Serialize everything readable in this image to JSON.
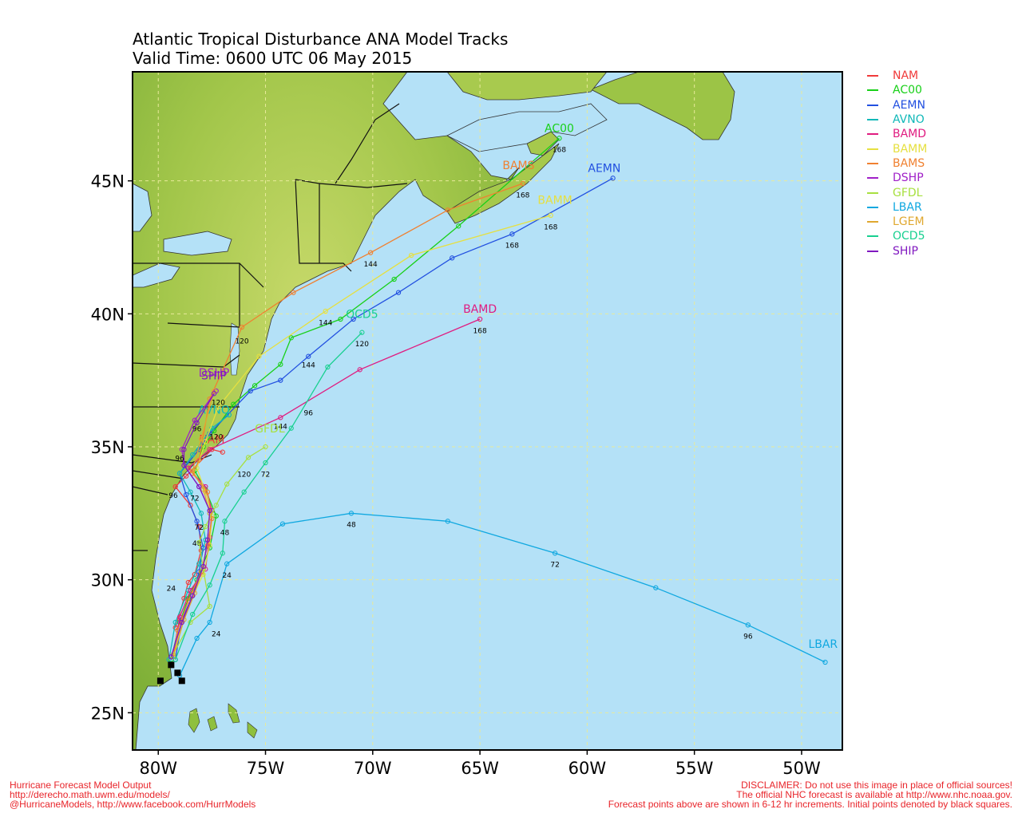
{
  "title_line1": "Atlantic Tropical Disturbance ANA Model Tracks",
  "title_line2": "Valid Time: 0600 UTC 06 May 2015",
  "footer_left": [
    "Hurricane Forecast Model Output",
    "http://derecho.math.uwm.edu/models/",
    "@HurricaneModels, http://www.facebook.com/HurrModels"
  ],
  "footer_right": [
    "DISCLAIMER: Do not use this image in place of official sources!",
    "The official NHC forecast is available at http://www.nhc.noaa.gov.",
    "Forecast points above are shown in 6-12 hr increments. Initial points denoted by black squares."
  ],
  "chart_data": {
    "type": "scatter",
    "title": "Atlantic Tropical Disturbance ANA Model Tracks",
    "subtitle": "Valid Time: 0600 UTC 06 May 2015",
    "x_axis": {
      "units": "degrees longitude",
      "range": [
        -81.2,
        -48.1
      ],
      "ticks": [
        "80W",
        "75W",
        "70W",
        "65W",
        "60W",
        "55W",
        "50W"
      ],
      "tick_values": [
        -80,
        -75,
        -70,
        -65,
        -60,
        -55,
        -50
      ]
    },
    "y_axis": {
      "units": "degrees latitude",
      "range": [
        23.6,
        49.1
      ],
      "ticks": [
        "25N",
        "30N",
        "35N",
        "40N",
        "45N"
      ],
      "tick_values": [
        25,
        30,
        35,
        40,
        45
      ]
    },
    "grid": true,
    "legend_position": "right",
    "initial_points": [
      [
        -79.9,
        26.2
      ],
      [
        -79.4,
        26.8
      ],
      [
        -79.1,
        26.5
      ],
      [
        -78.9,
        26.2
      ]
    ],
    "series": [
      {
        "name": "NAM",
        "color": "#f03a3a",
        "points": [
          [
            -79.2,
            28.2
          ],
          [
            -78.8,
            29.3
          ],
          [
            -78.6,
            29.9
          ],
          [
            -78.3,
            30.2
          ],
          [
            -78.0,
            31.1
          ],
          [
            -78.1,
            32.0
          ],
          [
            -78.5,
            32.8
          ],
          [
            -79.2,
            33.5
          ],
          [
            -78.7,
            33.9
          ],
          [
            -77.5,
            34.9
          ],
          [
            -77.0,
            34.8
          ]
        ],
        "labels": [
          {
            "text": "24",
            "lon": -79.4,
            "lat": 29.7
          },
          {
            "text": "96",
            "lon": -79.3,
            "lat": 33.2
          }
        ],
        "end_label": "NAM",
        "end_label_pos": [
          -77.5,
          34.9
        ]
      },
      {
        "name": "AC00",
        "color": "#18d018",
        "points": [
          [
            -79.4,
            27.0
          ],
          [
            -79.0,
            28.4
          ],
          [
            -78.6,
            29.3
          ],
          [
            -78.2,
            30.0
          ],
          [
            -77.6,
            31.2
          ],
          [
            -77.3,
            32.4
          ],
          [
            -77.8,
            33.4
          ],
          [
            -78.3,
            34.1
          ],
          [
            -77.9,
            35.0
          ],
          [
            -77.4,
            35.6
          ],
          [
            -76.5,
            36.6
          ],
          [
            -75.5,
            37.3
          ],
          [
            -74.3,
            38.1
          ],
          [
            -73.8,
            39.1
          ],
          [
            -71.5,
            39.8
          ],
          [
            -69.0,
            41.3
          ],
          [
            -66.0,
            43.3
          ],
          [
            -61.3,
            46.6
          ]
        ],
        "labels": [
          {
            "text": "48",
            "lon": -78.2,
            "lat": 31.4
          },
          {
            "text": "168",
            "lon": -61.3,
            "lat": 46.2
          }
        ],
        "end_label": "AC00",
        "end_label_pos": [
          -61.3,
          46.6
        ]
      },
      {
        "name": "AEMN",
        "color": "#2250e0",
        "points": [
          [
            -79.2,
            27.0
          ],
          [
            -78.9,
            28.5
          ],
          [
            -78.4,
            29.4
          ],
          [
            -78.1,
            30.3
          ],
          [
            -77.9,
            31.2
          ],
          [
            -78.2,
            32.2
          ],
          [
            -78.7,
            33.2
          ],
          [
            -79.0,
            34.0
          ],
          [
            -78.1,
            34.9
          ],
          [
            -77.6,
            35.5
          ],
          [
            -75.7,
            37.1
          ],
          [
            -74.3,
            37.5
          ],
          [
            -73.0,
            38.4
          ],
          [
            -70.9,
            39.8
          ],
          [
            -68.8,
            40.8
          ],
          [
            -66.3,
            42.1
          ],
          [
            -63.5,
            43.0
          ],
          [
            -58.8,
            45.1
          ]
        ],
        "labels": [
          {
            "text": "144",
            "lon": -73.0,
            "lat": 38.1
          },
          {
            "text": "168",
            "lon": -63.5,
            "lat": 42.6
          }
        ],
        "end_label": "AEMN",
        "end_label_pos": [
          -59.2,
          45.1
        ]
      },
      {
        "name": "AVNO",
        "color": "#10b8b8",
        "points": [
          [
            -79.5,
            27.0
          ],
          [
            -79.2,
            28.4
          ],
          [
            -78.6,
            29.6
          ],
          [
            -78.1,
            30.6
          ],
          [
            -77.8,
            31.5
          ],
          [
            -78.0,
            32.5
          ],
          [
            -78.5,
            33.3
          ],
          [
            -79.0,
            34.0
          ],
          [
            -78.4,
            34.7
          ],
          [
            -77.5,
            35.7
          ],
          [
            -76.7,
            36.2
          ]
        ],
        "labels": [
          {
            "text": "120",
            "lon": -77.3,
            "lat": 35.4
          }
        ],
        "end_label": "AVNO",
        "end_label_pos": [
          -77.4,
          36.0
        ]
      },
      {
        "name": "BAMD",
        "color": "#e01c80",
        "points": [
          [
            -79.3,
            27.2
          ],
          [
            -79.0,
            28.6
          ],
          [
            -78.5,
            29.6
          ],
          [
            -77.8,
            30.4
          ],
          [
            -77.6,
            31.6
          ],
          [
            -77.5,
            32.6
          ],
          [
            -77.8,
            33.5
          ],
          [
            -78.6,
            34.2
          ],
          [
            -77.6,
            34.9
          ],
          [
            -74.3,
            36.1
          ],
          [
            -70.6,
            37.9
          ],
          [
            -65.0,
            39.8
          ]
        ],
        "labels": [
          {
            "text": "144",
            "lon": -74.3,
            "lat": 35.8
          },
          {
            "text": "168",
            "lon": -65.0,
            "lat": 39.4
          }
        ],
        "end_label": "BAMD",
        "end_label_pos": [
          -65.0,
          39.8
        ]
      },
      {
        "name": "BAMM",
        "color": "#e6e040",
        "points": [
          [
            -79.3,
            27.1
          ],
          [
            -78.9,
            28.4
          ],
          [
            -78.4,
            29.4
          ],
          [
            -77.9,
            30.2
          ],
          [
            -77.6,
            31.3
          ],
          [
            -77.5,
            32.4
          ],
          [
            -77.8,
            33.3
          ],
          [
            -78.2,
            34.2
          ],
          [
            -77.8,
            35.2
          ],
          [
            -77.2,
            36.5
          ],
          [
            -75.3,
            38.4
          ],
          [
            -72.2,
            40.1
          ],
          [
            -68.2,
            42.2
          ],
          [
            -61.7,
            43.7
          ]
        ],
        "labels": [
          {
            "text": "144",
            "lon": -72.2,
            "lat": 39.7
          },
          {
            "text": "168",
            "lon": -61.7,
            "lat": 43.3
          }
        ],
        "end_label": "BAMM",
        "end_label_pos": [
          -61.5,
          43.9
        ]
      },
      {
        "name": "BAMS",
        "color": "#f08030",
        "points": [
          [
            -79.3,
            27.1
          ],
          [
            -79.1,
            28.1
          ],
          [
            -78.6,
            29.2
          ],
          [
            -78.0,
            30.3
          ],
          [
            -77.7,
            31.3
          ],
          [
            -77.5,
            32.3
          ],
          [
            -77.7,
            33.3
          ],
          [
            -78.4,
            34.0
          ],
          [
            -78.1,
            34.5
          ],
          [
            -77.6,
            36.8
          ],
          [
            -76.1,
            39.5
          ],
          [
            -73.7,
            40.8
          ],
          [
            -70.1,
            42.3
          ],
          [
            -66.5,
            43.9
          ],
          [
            -63.0,
            44.9
          ]
        ],
        "labels": [
          {
            "text": "120",
            "lon": -76.1,
            "lat": 39.0
          },
          {
            "text": "144",
            "lon": -70.1,
            "lat": 41.9
          },
          {
            "text": "168",
            "lon": -63.0,
            "lat": 44.5
          }
        ],
        "end_label": "BAMS",
        "end_label_pos": [
          -63.2,
          45.2
        ]
      },
      {
        "name": "DSHP",
        "color": "#a020c8",
        "points": [
          [
            -79.4,
            27.1
          ],
          [
            -78.9,
            28.4
          ],
          [
            -78.4,
            29.4
          ],
          [
            -77.9,
            30.5
          ],
          [
            -77.7,
            31.5
          ],
          [
            -77.6,
            32.6
          ],
          [
            -78.1,
            33.5
          ],
          [
            -78.8,
            34.3
          ],
          [
            -78.9,
            34.9
          ],
          [
            -78.3,
            36.0
          ],
          [
            -77.3,
            37.1
          ]
        ],
        "labels": [
          {
            "text": "96",
            "lon": -78.2,
            "lat": 35.7
          },
          {
            "text": "120",
            "lon": -77.2,
            "lat": 36.7
          }
        ],
        "end_label": "DSHP",
        "end_label_pos": [
          -77.4,
          37.4
        ]
      },
      {
        "name": "GFDL",
        "color": "#a8e040",
        "points": [
          [
            -79.3,
            27.2
          ],
          [
            -78.5,
            28.4
          ],
          [
            -77.6,
            29.0
          ],
          [
            -77.9,
            30.4
          ],
          [
            -78.1,
            31.4
          ],
          [
            -77.8,
            32.0
          ],
          [
            -77.3,
            32.8
          ],
          [
            -76.8,
            33.6
          ],
          [
            -75.8,
            34.6
          ],
          [
            -75.0,
            35.0
          ]
        ],
        "labels": [
          {
            "text": "24",
            "lon": -77.3,
            "lat": 28.0
          },
          {
            "text": "72",
            "lon": -78.1,
            "lat": 32.0
          },
          {
            "text": "120",
            "lon": -76.0,
            "lat": 34.0
          }
        ],
        "end_label": "GFDL",
        "end_label_pos": [
          -74.8,
          35.3
        ]
      },
      {
        "name": "LBAR",
        "color": "#10a8e0",
        "points": [
          [
            -79.0,
            26.4
          ],
          [
            -78.2,
            27.8
          ],
          [
            -77.6,
            28.4
          ],
          [
            -76.8,
            30.6
          ],
          [
            -74.2,
            32.1
          ],
          [
            -71.0,
            32.5
          ],
          [
            -66.5,
            32.2
          ],
          [
            -61.5,
            31.0
          ],
          [
            -56.8,
            29.7
          ],
          [
            -52.5,
            28.3
          ],
          [
            -48.9,
            26.9
          ]
        ],
        "labels": [
          {
            "text": "24",
            "lon": -76.8,
            "lat": 30.2
          },
          {
            "text": "48",
            "lon": -71.0,
            "lat": 32.1
          },
          {
            "text": "72",
            "lon": -61.5,
            "lat": 30.6
          },
          {
            "text": "96",
            "lon": -52.5,
            "lat": 27.9
          }
        ],
        "end_label": "LBAR",
        "end_label_pos": [
          -49.0,
          27.2
        ]
      },
      {
        "name": "LGEM",
        "color": "#e0a830",
        "points": [
          [
            -79.3,
            27.1
          ],
          [
            -78.8,
            28.5
          ],
          [
            -78.3,
            29.5
          ],
          [
            -77.9,
            30.5
          ],
          [
            -77.7,
            31.5
          ],
          [
            -77.6,
            32.5
          ],
          [
            -77.9,
            33.4
          ],
          [
            -78.4,
            34.1
          ],
          [
            -78.0,
            35.3
          ],
          [
            -77.4,
            37.1
          ]
        ],
        "labels": [],
        "end_label": "",
        "end_label_pos": [
          -77.4,
          37.1
        ]
      },
      {
        "name": "OCD5",
        "color": "#18d090",
        "points": [
          [
            -79.2,
            27.0
          ],
          [
            -78.4,
            28.7
          ],
          [
            -77.6,
            29.8
          ],
          [
            -77.0,
            31.0
          ],
          [
            -76.9,
            32.2
          ],
          [
            -76.0,
            33.3
          ],
          [
            -75.0,
            34.4
          ],
          [
            -73.8,
            35.7
          ],
          [
            -72.1,
            38.0
          ],
          [
            -70.5,
            39.3
          ]
        ],
        "labels": [
          {
            "text": "48",
            "lon": -76.9,
            "lat": 31.8
          },
          {
            "text": "72",
            "lon": -75.0,
            "lat": 34.0
          },
          {
            "text": "96",
            "lon": -73.0,
            "lat": 36.3
          },
          {
            "text": "120",
            "lon": -70.5,
            "lat": 38.9
          }
        ],
        "end_label": "OCD5",
        "end_label_pos": [
          -70.5,
          39.6
        ]
      },
      {
        "name": "SHIP",
        "color": "#8018c0",
        "points": [
          [
            -79.4,
            27.1
          ],
          [
            -78.9,
            28.4
          ],
          [
            -78.4,
            29.4
          ],
          [
            -77.9,
            30.5
          ],
          [
            -77.7,
            31.5
          ],
          [
            -77.6,
            32.6
          ],
          [
            -78.1,
            33.5
          ],
          [
            -78.8,
            34.3
          ],
          [
            -78.8,
            34.9
          ],
          [
            -78.2,
            35.9
          ],
          [
            -77.4,
            37.0
          ]
        ],
        "labels": [
          {
            "text": "72",
            "lon": -78.3,
            "lat": 33.1
          },
          {
            "text": "96",
            "lon": -79.0,
            "lat": 34.6
          }
        ],
        "end_label": "SHIP",
        "end_label_pos": [
          -77.4,
          37.3
        ]
      }
    ]
  }
}
